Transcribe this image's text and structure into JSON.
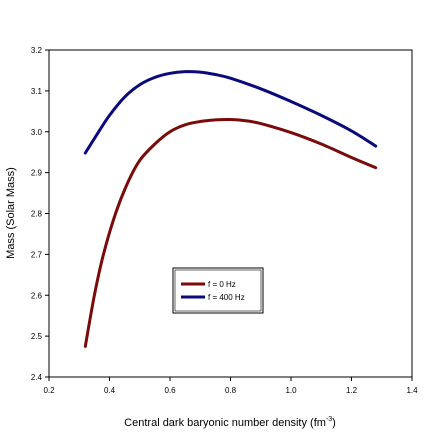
{
  "chart_data": {
    "type": "line",
    "xlabel": "Central dark baryonic number density (fm",
    "xlabel_sup": "-3",
    "xlabel_end": ")",
    "ylabel": "Mass (Solar Mass)",
    "xlim": [
      0.2,
      1.4
    ],
    "ylim": [
      2.4,
      3.2
    ],
    "x_ticks": [
      0.2,
      0.4,
      0.6,
      0.8,
      1.0,
      1.2,
      1.4
    ],
    "x_tick_labels": [
      "0.2",
      "0.4",
      "0.6",
      "0.8",
      "1.0",
      "1.2",
      "1.4"
    ],
    "y_ticks": [
      2.4,
      2.5,
      2.6,
      2.7,
      2.8,
      2.9,
      3.0,
      3.1,
      3.2
    ],
    "y_tick_labels": [
      "2.4",
      "2.5",
      "2.6",
      "2.7",
      "2.8",
      "2.9",
      "3.0",
      "3.1",
      "3.2"
    ],
    "grid": false,
    "legend_position": "center",
    "series": [
      {
        "name": "f = 0 Hz",
        "color": "#7b0a0a",
        "x": [
          0.32,
          0.35,
          0.38,
          0.42,
          0.46,
          0.5,
          0.55,
          0.6,
          0.65,
          0.7,
          0.75,
          0.8,
          0.85,
          0.9,
          1.0,
          1.1,
          1.2,
          1.28
        ],
        "y": [
          2.475,
          2.6,
          2.7,
          2.8,
          2.875,
          2.93,
          2.97,
          3.0,
          3.017,
          3.025,
          3.029,
          3.03,
          3.027,
          3.02,
          2.998,
          2.97,
          2.937,
          2.912
        ]
      },
      {
        "name": "f = 400 Hz",
        "color": "#0a0a7b",
        "x": [
          0.32,
          0.36,
          0.4,
          0.45,
          0.5,
          0.55,
          0.6,
          0.65,
          0.7,
          0.75,
          0.8,
          0.9,
          1.0,
          1.1,
          1.2,
          1.28
        ],
        "y": [
          2.948,
          2.995,
          3.04,
          3.085,
          3.115,
          3.133,
          3.143,
          3.147,
          3.146,
          3.14,
          3.131,
          3.105,
          3.074,
          3.04,
          3.002,
          2.965
        ]
      }
    ]
  }
}
